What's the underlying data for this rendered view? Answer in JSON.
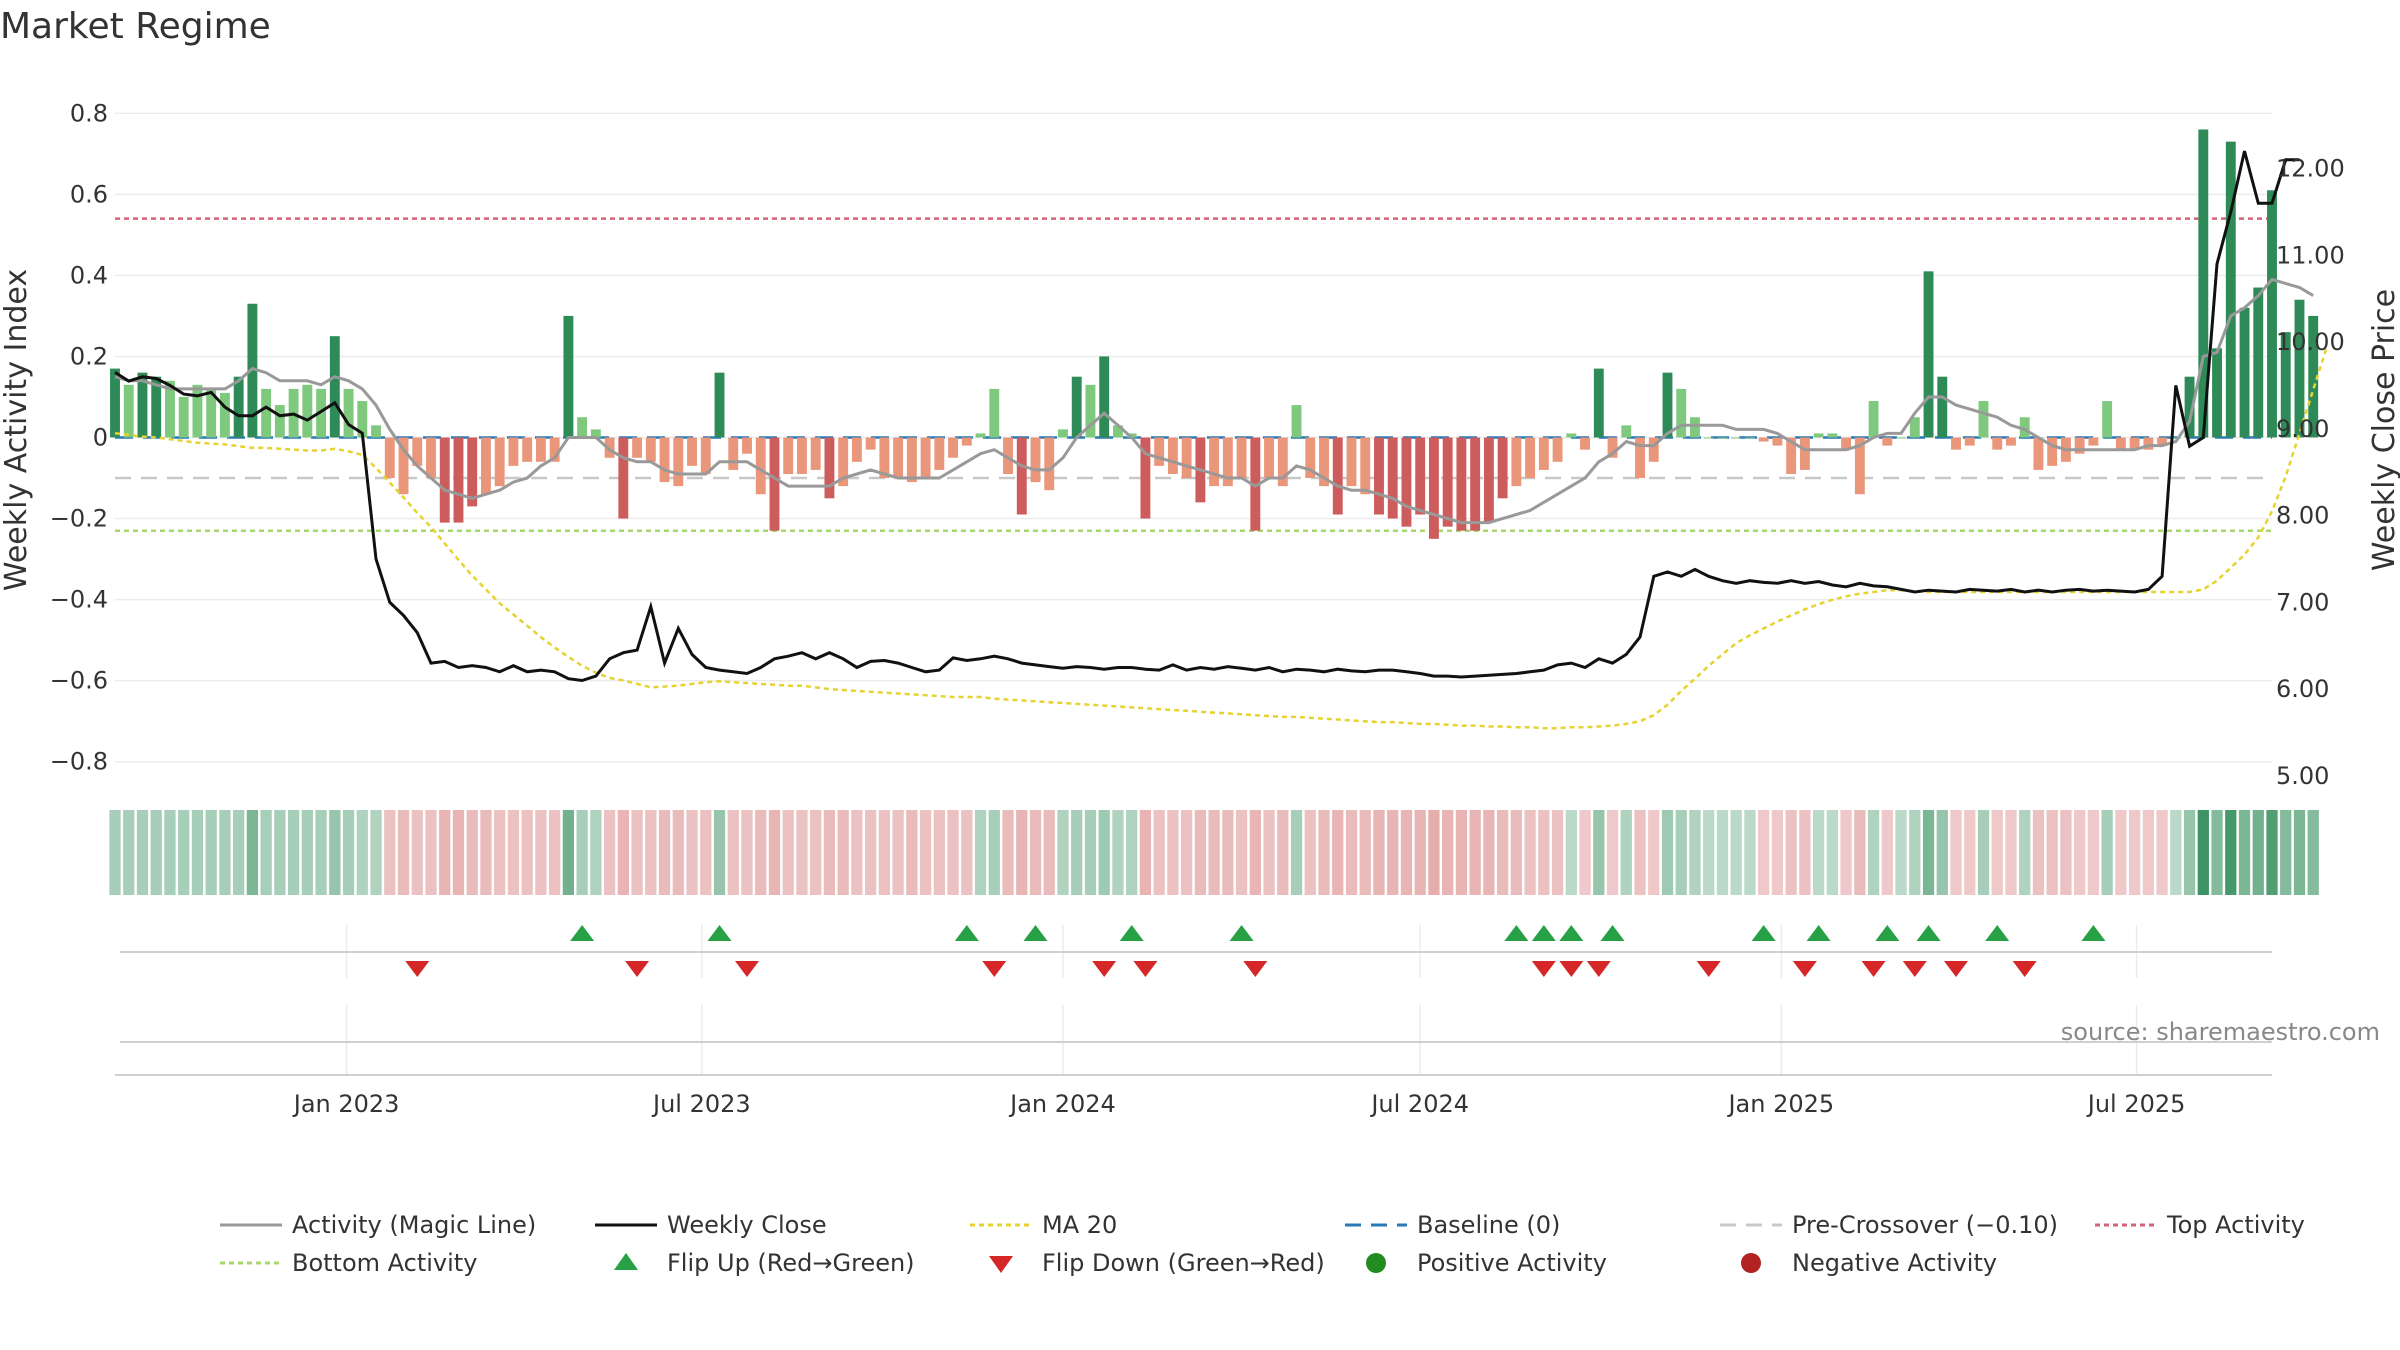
{
  "title": "Market Regime",
  "source": "source: sharemaestro.com",
  "colors": {
    "pos_dark": "#2e8b57",
    "pos_light": "#7fc97f",
    "neg_dark": "#cd5c5c",
    "neg_light": "#e9967a",
    "close": "#111111",
    "magic": "#999999",
    "ma": "#e6d230",
    "baseline": "#2a7ab8",
    "pre_crossover": "#c8c8c8",
    "top": "#d4607a",
    "bottom": "#a6d96a",
    "flip_up": "#27a046",
    "flip_down": "#d62728",
    "positive_dot": "#228b22",
    "negative_dot": "#b22222"
  },
  "chart_data": {
    "type": "bar",
    "title": "Market Regime",
    "left_axis": {
      "label": "Weekly Activity Index",
      "ylim": [
        -0.85,
        0.85
      ],
      "ticks": [
        "0.8",
        "0.6",
        "0.4",
        "0.2",
        "0",
        "−0.2",
        "−0.4",
        "−0.6",
        "−0.8"
      ],
      "tick_values": [
        0.8,
        0.6,
        0.4,
        0.2,
        0,
        -0.2,
        -0.4,
        -0.6,
        -0.8
      ]
    },
    "right_axis": {
      "label": "Weekly Close Price",
      "ylim": [
        4.93,
        12.87
      ],
      "ticks": [
        "12.00",
        "11.00",
        "10.00",
        "9.00",
        "8.00",
        "7.00",
        "6.00",
        "5.00"
      ],
      "tick_values": [
        12,
        11,
        10,
        9,
        8,
        7,
        6,
        5
      ]
    },
    "x_axis": {
      "range": [
        "2022-09-05",
        "2025-09-08"
      ],
      "ticks": [
        {
          "label": "Jan 2023",
          "date": "2023-01-01"
        },
        {
          "label": "Jul 2023",
          "date": "2023-07-01"
        },
        {
          "label": "Jan 2024",
          "date": "2024-01-01"
        },
        {
          "label": "Jul 2024",
          "date": "2024-07-01"
        },
        {
          "label": "Jan 2025",
          "date": "2025-01-01"
        },
        {
          "label": "Jul 2025",
          "date": "2025-07-01"
        }
      ]
    },
    "weeks": {
      "start": "2022-09-05",
      "count": 157,
      "interval_days": 7
    },
    "activity": [
      0.17,
      0.13,
      0.16,
      0.15,
      0.14,
      0.1,
      0.13,
      0.12,
      0.11,
      0.15,
      0.33,
      0.12,
      0.08,
      0.12,
      0.13,
      0.12,
      0.25,
      0.12,
      0.09,
      0.03,
      -0.1,
      -0.14,
      -0.07,
      -0.1,
      -0.21,
      -0.21,
      -0.17,
      -0.14,
      -0.12,
      -0.07,
      -0.06,
      -0.06,
      -0.06,
      0.3,
      0.05,
      0.02,
      -0.05,
      -0.2,
      -0.05,
      -0.06,
      -0.11,
      -0.12,
      -0.07,
      -0.09,
      0.16,
      -0.08,
      -0.04,
      -0.14,
      -0.23,
      -0.09,
      -0.09,
      -0.08,
      -0.15,
      -0.12,
      -0.06,
      -0.03,
      -0.1,
      -0.1,
      -0.11,
      -0.1,
      -0.08,
      -0.05,
      -0.02,
      0.01,
      0.12,
      -0.09,
      -0.19,
      -0.11,
      -0.13,
      0.02,
      0.15,
      0.13,
      0.2,
      0.03,
      0.01,
      -0.2,
      -0.07,
      -0.09,
      -0.1,
      -0.16,
      -0.12,
      -0.12,
      -0.1,
      -0.23,
      -0.1,
      -0.12,
      0.08,
      -0.1,
      -0.12,
      -0.19,
      -0.12,
      -0.14,
      -0.19,
      -0.2,
      -0.22,
      -0.19,
      -0.25,
      -0.22,
      -0.23,
      -0.23,
      -0.21,
      -0.15,
      -0.12,
      -0.1,
      -0.08,
      -0.06,
      0.01,
      -0.03,
      0.17,
      -0.05,
      0.03,
      -0.1,
      -0.06,
      0.16,
      0.12,
      0.05,
      0.0,
      0.0,
      0.0,
      0.0,
      -0.01,
      -0.02,
      -0.09,
      -0.08,
      0.01,
      0.01,
      -0.03,
      -0.14,
      0.09,
      -0.02,
      0.0,
      0.05,
      0.41,
      0.15,
      -0.03,
      -0.02,
      0.09,
      -0.03,
      -0.02,
      0.05,
      -0.08,
      -0.07,
      -0.06,
      -0.04,
      -0.02,
      0.09,
      -0.03,
      -0.03,
      -0.03,
      -0.02,
      0.0,
      0.15,
      0.76,
      0.22,
      0.73,
      0.32,
      0.37,
      0.61,
      0.26,
      0.34,
      0.3
    ],
    "weekly_close": [
      9.65,
      9.55,
      9.6,
      9.58,
      9.5,
      9.4,
      9.38,
      9.42,
      9.25,
      9.15,
      9.15,
      9.25,
      9.15,
      9.17,
      9.1,
      9.2,
      9.3,
      9.05,
      8.95,
      7.5,
      7.0,
      6.85,
      6.65,
      6.3,
      6.32,
      6.25,
      6.27,
      6.25,
      6.2,
      6.27,
      6.2,
      6.22,
      6.2,
      6.12,
      6.1,
      6.15,
      6.35,
      6.42,
      6.45,
      6.95,
      6.3,
      6.7,
      6.4,
      6.25,
      6.22,
      6.2,
      6.18,
      6.25,
      6.35,
      6.38,
      6.42,
      6.35,
      6.42,
      6.35,
      6.25,
      6.32,
      6.33,
      6.3,
      6.25,
      6.2,
      6.22,
      6.36,
      6.33,
      6.35,
      6.38,
      6.35,
      6.3,
      6.28,
      6.26,
      6.24,
      6.26,
      6.25,
      6.23,
      6.25,
      6.25,
      6.23,
      6.22,
      6.28,
      6.22,
      6.25,
      6.23,
      6.26,
      6.24,
      6.22,
      6.25,
      6.2,
      6.23,
      6.22,
      6.2,
      6.23,
      6.21,
      6.2,
      6.22,
      6.22,
      6.2,
      6.18,
      6.15,
      6.15,
      6.14,
      6.15,
      6.16,
      6.17,
      6.18,
      6.2,
      6.22,
      6.28,
      6.3,
      6.25,
      6.35,
      6.3,
      6.4,
      6.6,
      7.3,
      7.35,
      7.3,
      7.38,
      7.3,
      7.25,
      7.22,
      7.25,
      7.23,
      7.22,
      7.25,
      7.22,
      7.24,
      7.2,
      7.18,
      7.22,
      7.19,
      7.18,
      7.15,
      7.12,
      7.14,
      7.13,
      7.12,
      7.15,
      7.14,
      7.13,
      7.15,
      7.12,
      7.14,
      7.12,
      7.14,
      7.15,
      7.13,
      7.14,
      7.13,
      7.12,
      7.15,
      7.3,
      9.5,
      8.8,
      8.9,
      10.9,
      11.5,
      12.2,
      11.6,
      11.6,
      12.1,
      12.1
    ],
    "ma20": [
      8.95,
      8.93,
      8.91,
      8.9,
      8.88,
      8.86,
      8.84,
      8.83,
      8.82,
      8.8,
      8.78,
      8.78,
      8.77,
      8.76,
      8.75,
      8.75,
      8.77,
      8.74,
      8.7,
      8.55,
      8.38,
      8.21,
      8.03,
      7.87,
      7.68,
      7.49,
      7.31,
      7.15,
      6.99,
      6.86,
      6.73,
      6.6,
      6.48,
      6.37,
      6.27,
      6.19,
      6.13,
      6.1,
      6.06,
      6.02,
      6.03,
      6.04,
      6.06,
      6.08,
      6.09,
      6.08,
      6.07,
      6.06,
      6.05,
      6.04,
      6.04,
      6.02,
      6.0,
      5.99,
      5.98,
      5.97,
      5.96,
      5.95,
      5.94,
      5.93,
      5.92,
      5.91,
      5.91,
      5.91,
      5.89,
      5.88,
      5.87,
      5.86,
      5.85,
      5.84,
      5.83,
      5.82,
      5.81,
      5.8,
      5.79,
      5.78,
      5.77,
      5.76,
      5.75,
      5.74,
      5.73,
      5.72,
      5.71,
      5.7,
      5.69,
      5.68,
      5.68,
      5.67,
      5.66,
      5.65,
      5.64,
      5.63,
      5.62,
      5.62,
      5.61,
      5.6,
      5.6,
      5.59,
      5.58,
      5.58,
      5.57,
      5.57,
      5.56,
      5.56,
      5.55,
      5.55,
      5.56,
      5.56,
      5.57,
      5.58,
      5.6,
      5.63,
      5.7,
      5.82,
      5.98,
      6.12,
      6.27,
      6.4,
      6.53,
      6.62,
      6.7,
      6.78,
      6.85,
      6.92,
      6.98,
      7.03,
      7.07,
      7.1,
      7.12,
      7.14,
      7.14,
      7.13,
      7.12,
      7.12,
      7.12,
      7.12,
      7.12,
      7.12,
      7.12,
      7.12,
      7.12,
      7.12,
      7.12,
      7.12,
      7.12,
      7.12,
      7.12,
      7.12,
      7.12,
      7.12,
      7.12,
      7.12,
      7.15,
      7.25,
      7.4,
      7.55,
      7.75,
      8.05,
      8.45,
      8.95,
      9.45,
      9.95
    ],
    "magic_line": [
      0.15,
      0.14,
      0.14,
      0.13,
      0.12,
      0.12,
      0.12,
      0.12,
      0.12,
      0.14,
      0.17,
      0.16,
      0.14,
      0.14,
      0.14,
      0.13,
      0.15,
      0.14,
      0.12,
      0.08,
      0.02,
      -0.03,
      -0.07,
      -0.1,
      -0.13,
      -0.14,
      -0.15,
      -0.14,
      -0.13,
      -0.11,
      -0.1,
      -0.07,
      -0.05,
      0.0,
      0.0,
      0.0,
      -0.03,
      -0.05,
      -0.06,
      -0.06,
      -0.08,
      -0.09,
      -0.09,
      -0.09,
      -0.06,
      -0.06,
      -0.06,
      -0.08,
      -0.1,
      -0.12,
      -0.12,
      -0.12,
      -0.12,
      -0.1,
      -0.09,
      -0.08,
      -0.09,
      -0.1,
      -0.1,
      -0.1,
      -0.1,
      -0.08,
      -0.06,
      -0.04,
      -0.03,
      -0.05,
      -0.07,
      -0.08,
      -0.08,
      -0.05,
      0.0,
      0.03,
      0.06,
      0.03,
      0.0,
      -0.04,
      -0.05,
      -0.06,
      -0.07,
      -0.08,
      -0.09,
      -0.1,
      -0.1,
      -0.12,
      -0.1,
      -0.1,
      -0.07,
      -0.08,
      -0.1,
      -0.12,
      -0.13,
      -0.13,
      -0.14,
      -0.15,
      -0.17,
      -0.18,
      -0.19,
      -0.2,
      -0.21,
      -0.21,
      -0.21,
      -0.2,
      -0.19,
      -0.18,
      -0.16,
      -0.14,
      -0.12,
      -0.1,
      -0.06,
      -0.04,
      -0.01,
      -0.02,
      -0.02,
      0.01,
      0.03,
      0.03,
      0.03,
      0.03,
      0.02,
      0.02,
      0.02,
      0.01,
      -0.01,
      -0.03,
      -0.03,
      -0.03,
      -0.03,
      -0.02,
      0.0,
      0.01,
      0.01,
      0.06,
      0.1,
      0.1,
      0.08,
      0.07,
      0.06,
      0.05,
      0.03,
      0.02,
      0.0,
      -0.02,
      -0.03,
      -0.03,
      -0.03,
      -0.03,
      -0.03,
      -0.03,
      -0.02,
      -0.02,
      -0.01,
      0.04,
      0.2,
      0.21,
      0.3,
      0.32,
      0.35,
      0.39,
      0.38,
      0.37,
      0.35
    ],
    "reference_lines": {
      "baseline": 0,
      "pre_crossover": -0.1,
      "top_activity": 0.54,
      "bottom_activity": -0.23
    },
    "flip_up_weeks": [
      34,
      44,
      62,
      67,
      74,
      82,
      102,
      104,
      106,
      109,
      120,
      124,
      129,
      132,
      137,
      144
    ],
    "flip_down_weeks": [
      22,
      38,
      46,
      64,
      72,
      75,
      83,
      104,
      106,
      108,
      116,
      123,
      128,
      131,
      134,
      139
    ],
    "regime_strip": [
      0.35,
      0.35,
      0.35,
      0.35,
      0.35,
      0.35,
      0.35,
      0.35,
      0.35,
      0.35,
      0.6,
      0.35,
      0.35,
      0.35,
      0.35,
      0.35,
      0.45,
      0.35,
      0.3,
      0.3,
      -0.3,
      -0.35,
      -0.3,
      -0.3,
      -0.4,
      -0.4,
      -0.35,
      -0.35,
      -0.3,
      -0.3,
      -0.3,
      -0.3,
      -0.3,
      0.65,
      0.35,
      0.3,
      -0.3,
      -0.4,
      -0.3,
      -0.3,
      -0.35,
      -0.35,
      -0.3,
      -0.3,
      0.45,
      -0.3,
      -0.3,
      -0.35,
      -0.4,
      -0.3,
      -0.3,
      -0.3,
      -0.35,
      -0.35,
      -0.3,
      -0.3,
      -0.3,
      -0.3,
      -0.35,
      -0.3,
      -0.3,
      -0.3,
      -0.3,
      0.3,
      0.35,
      -0.35,
      -0.4,
      -0.35,
      -0.35,
      0.3,
      0.35,
      0.35,
      0.4,
      0.3,
      0.3,
      -0.4,
      -0.3,
      -0.3,
      -0.3,
      -0.35,
      -0.35,
      -0.35,
      -0.3,
      -0.4,
      -0.3,
      -0.35,
      0.35,
      -0.3,
      -0.35,
      -0.4,
      -0.35,
      -0.35,
      -0.4,
      -0.4,
      -0.4,
      -0.4,
      -0.45,
      -0.4,
      -0.4,
      -0.4,
      -0.4,
      -0.35,
      -0.35,
      -0.3,
      -0.3,
      -0.3,
      0.25,
      -0.25,
      0.45,
      -0.25,
      0.3,
      -0.3,
      -0.25,
      0.4,
      0.35,
      0.3,
      0.25,
      0.25,
      0.25,
      0.25,
      -0.25,
      -0.25,
      -0.3,
      -0.3,
      0.25,
      0.25,
      -0.25,
      -0.35,
      0.3,
      -0.25,
      0.25,
      0.3,
      0.6,
      0.45,
      -0.25,
      -0.25,
      0.35,
      -0.25,
      -0.25,
      0.3,
      -0.3,
      -0.3,
      -0.3,
      -0.25,
      -0.25,
      0.35,
      -0.25,
      -0.25,
      -0.25,
      -0.25,
      0.25,
      0.45,
      0.95,
      0.55,
      0.9,
      0.6,
      0.65,
      0.85,
      0.55,
      0.6,
      0.55
    ]
  },
  "legend": [
    {
      "key": "magic",
      "label": "Activity (Magic Line)",
      "symbol": "line",
      "color_key": "magic"
    },
    {
      "key": "close",
      "label": "Weekly Close",
      "symbol": "line",
      "color_key": "close"
    },
    {
      "key": "ma20",
      "label": "MA 20",
      "symbol": "dotted",
      "color_key": "ma"
    },
    {
      "key": "baseline",
      "label": "Baseline (0)",
      "symbol": "dashed",
      "color_key": "baseline"
    },
    {
      "key": "pre",
      "label": "Pre-Crossover (−0.10)",
      "symbol": "dashed",
      "color_key": "pre_crossover"
    },
    {
      "key": "top",
      "label": "Top Activity",
      "symbol": "dotted",
      "color_key": "top"
    },
    {
      "key": "bottom",
      "label": "Bottom Activity",
      "symbol": "dotted",
      "color_key": "bottom"
    },
    {
      "key": "flip_up",
      "label": "Flip Up (Red→Green)",
      "symbol": "triangle-up",
      "color_key": "flip_up"
    },
    {
      "key": "flip_down",
      "label": "Flip Down (Green→Red)",
      "symbol": "triangle-down",
      "color_key": "flip_down"
    },
    {
      "key": "positive",
      "label": "Positive Activity",
      "symbol": "dot",
      "color_key": "positive_dot"
    },
    {
      "key": "negative",
      "label": "Negative Activity",
      "symbol": "dot",
      "color_key": "negative_dot"
    }
  ]
}
